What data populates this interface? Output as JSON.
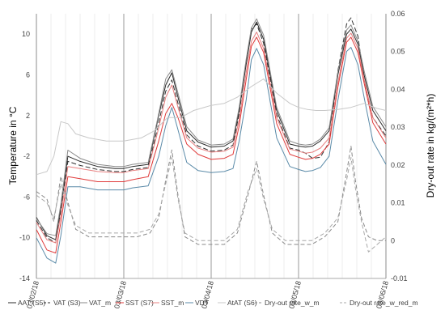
{
  "chart_data": {
    "type": "line",
    "ylabel": "Temperature in °C",
    "y2label": "Dry-out rate in kg/(m²*h)",
    "ylim": [
      -14,
      12
    ],
    "y2lim": [
      -0.01,
      0.06
    ],
    "yticks": [
      -14,
      -10,
      -6,
      -2,
      2,
      6,
      10
    ],
    "y2ticks": [
      -0.01,
      0,
      0.01,
      0.02,
      0.03,
      0.04,
      0.05,
      0.06
    ],
    "y2ticklabels": [
      "-0.01",
      "0",
      "0.01",
      "0.02",
      "0.03",
      "0.04",
      "0.05",
      "0.06"
    ],
    "xlim": [
      0,
      4
    ],
    "xticks": [
      0,
      1,
      2,
      3,
      4
    ],
    "xticklabels": [
      "03/02/18",
      "03/03/18",
      "03/04/18",
      "03/05/18",
      "03/06/18"
    ],
    "grid": "vertical",
    "legend_position": "bottom",
    "series": [
      {
        "name": "AAT (S5)",
        "axis": "left",
        "color": "#2a2a2a",
        "dash": "solid",
        "x": [
          0,
          0.12,
          0.22,
          0.28,
          0.36,
          0.5,
          0.7,
          0.9,
          1.0,
          1.1,
          1.28,
          1.4,
          1.48,
          1.55,
          1.62,
          1.72,
          1.85,
          2.0,
          2.15,
          2.25,
          2.32,
          2.4,
          2.46,
          2.52,
          2.6,
          2.75,
          2.9,
          3.0,
          3.08,
          3.16,
          3.25,
          3.35,
          3.45,
          3.55,
          3.6,
          3.68,
          3.75,
          3.85,
          4.0
        ],
        "y": [
          -8,
          -9.8,
          -10.2,
          -7,
          -2,
          -2.5,
          -3,
          -3.2,
          -3.2,
          -3,
          -2.8,
          2,
          5,
          6.2,
          3.8,
          0.5,
          -0.6,
          -1.1,
          -1.0,
          -0.5,
          2.5,
          7,
          10.2,
          11.2,
          9.5,
          2.5,
          -0.8,
          -1.0,
          -1.1,
          -1.0,
          -0.5,
          0.5,
          6,
          10,
          10.5,
          9,
          6,
          2.5,
          0.5
        ]
      },
      {
        "name": "VAT (S3)",
        "axis": "left",
        "color": "#303030",
        "dash": "6,3",
        "x": [
          0,
          0.12,
          0.22,
          0.28,
          0.36,
          0.5,
          0.7,
          0.9,
          1.0,
          1.1,
          1.28,
          1.4,
          1.48,
          1.55,
          1.62,
          1.72,
          1.85,
          2.0,
          2.15,
          2.25,
          2.32,
          2.4,
          2.46,
          2.52,
          2.6,
          2.75,
          2.9,
          3.0,
          3.08,
          3.16,
          3.25,
          3.35,
          3.45,
          3.55,
          3.6,
          3.68,
          3.75,
          3.85,
          4.0
        ],
        "y": [
          -8.3,
          -10.0,
          -10.5,
          -7.5,
          -2.5,
          -2.9,
          -3.3,
          -3.5,
          -3.5,
          -3.3,
          -3.1,
          1.3,
          4.4,
          5.5,
          3.2,
          0.1,
          -1.0,
          -1.5,
          -1.4,
          -0.9,
          2.2,
          7.2,
          10.5,
          11.0,
          9.1,
          2.1,
          -1.2,
          -1.4,
          -1.7,
          -2.2,
          -2.1,
          -0.6,
          6.4,
          11.0,
          11.6,
          9.8,
          5.5,
          1.8,
          0.0
        ]
      },
      {
        "name": "VAT_m",
        "axis": "left",
        "color": "#8a8a8a",
        "dash": "solid",
        "x": [
          0,
          0.12,
          0.22,
          0.28,
          0.36,
          0.5,
          0.7,
          0.9,
          1.0,
          1.1,
          1.28,
          1.4,
          1.48,
          1.55,
          1.62,
          1.72,
          1.85,
          2.0,
          2.15,
          2.25,
          2.32,
          2.4,
          2.46,
          2.52,
          2.6,
          2.75,
          2.9,
          3.0,
          3.08,
          3.16,
          3.25,
          3.35,
          3.45,
          3.55,
          3.6,
          3.68,
          3.75,
          3.85,
          4.0
        ],
        "y": [
          -8.1,
          -9.6,
          -9.8,
          -6.7,
          -1.4,
          -2.2,
          -2.8,
          -3.0,
          -3.0,
          -2.8,
          -2.6,
          2.2,
          5.6,
          6.5,
          4.2,
          0.9,
          -0.4,
          -0.9,
          -0.8,
          -0.3,
          2.8,
          7.5,
          10.6,
          11.5,
          9.9,
          2.8,
          -0.5,
          -0.8,
          -0.9,
          -0.8,
          -0.3,
          0.8,
          6.3,
          10.4,
          10.9,
          9.3,
          6.4,
          2.9,
          0.9
        ]
      },
      {
        "name": "SST (S7)",
        "axis": "left",
        "color": "#e03a3a",
        "dash": "solid",
        "x": [
          0,
          0.12,
          0.22,
          0.28,
          0.36,
          0.5,
          0.7,
          0.9,
          1.0,
          1.1,
          1.28,
          1.4,
          1.48,
          1.55,
          1.62,
          1.72,
          1.85,
          2.0,
          2.15,
          2.25,
          2.32,
          2.4,
          2.46,
          2.52,
          2.6,
          2.75,
          2.9,
          3.0,
          3.08,
          3.16,
          3.25,
          3.35,
          3.45,
          3.55,
          3.6,
          3.68,
          3.75,
          3.85,
          4.0
        ],
        "y": [
          -9.2,
          -11.2,
          -11.5,
          -8.5,
          -4.0,
          -4.2,
          -4.5,
          -4.5,
          -4.5,
          -4.3,
          -4.0,
          -0.5,
          2.2,
          3.2,
          1.8,
          -0.8,
          -1.8,
          -2.3,
          -2.2,
          -1.8,
          1.0,
          5.5,
          8.8,
          9.7,
          8.2,
          1.2,
          -1.8,
          -2.1,
          -2.3,
          -2.2,
          -1.8,
          -0.8,
          4.8,
          9.2,
          9.7,
          8.2,
          5.2,
          1.3,
          -0.8
        ]
      },
      {
        "name": "SST_m",
        "axis": "left",
        "color": "#e88080",
        "dash": "solid",
        "x": [
          0,
          0.12,
          0.22,
          0.28,
          0.36,
          0.5,
          0.7,
          0.9,
          1.0,
          1.1,
          1.28,
          1.4,
          1.48,
          1.55,
          1.62,
          1.72,
          1.85,
          2.0,
          2.15,
          2.25,
          2.32,
          2.4,
          2.46,
          2.52,
          2.6,
          2.75,
          2.9,
          3.0,
          3.08,
          3.16,
          3.25,
          3.35,
          3.45,
          3.55,
          3.6,
          3.68,
          3.75,
          3.85,
          4.0
        ],
        "y": [
          -8.5,
          -10.2,
          -10.5,
          -7.8,
          -3.0,
          -3.2,
          -3.5,
          -3.6,
          -3.6,
          -3.4,
          -3.2,
          0.8,
          3.8,
          5.0,
          2.8,
          -0.2,
          -1.2,
          -1.6,
          -1.5,
          -1.1,
          1.6,
          6.2,
          9.3,
          10.2,
          8.6,
          1.8,
          -1.3,
          -1.5,
          -1.7,
          -1.6,
          -1.2,
          -0.2,
          5.2,
          9.6,
          10.1,
          8.6,
          5.6,
          1.8,
          -0.2
        ]
      },
      {
        "name": "VDT",
        "axis": "left",
        "color": "#5a8aa8",
        "dash": "solid",
        "x": [
          0,
          0.12,
          0.22,
          0.28,
          0.36,
          0.5,
          0.7,
          0.9,
          1.0,
          1.1,
          1.28,
          1.4,
          1.48,
          1.55,
          1.62,
          1.72,
          1.85,
          2.0,
          2.15,
          2.25,
          2.32,
          2.4,
          2.46,
          2.52,
          2.6,
          2.75,
          2.9,
          3.0,
          3.08,
          3.16,
          3.25,
          3.35,
          3.45,
          3.55,
          3.6,
          3.68,
          3.75,
          3.85,
          4.0
        ],
        "y": [
          -10.0,
          -12.0,
          -12.5,
          -9.8,
          -5.0,
          -5.0,
          -5.3,
          -5.3,
          -5.3,
          -5.1,
          -4.9,
          -2.0,
          1.0,
          2.8,
          0.6,
          -2.6,
          -3.4,
          -3.6,
          -3.5,
          -3.2,
          -0.5,
          3.5,
          7.5,
          8.6,
          7.0,
          -0.2,
          -3.0,
          -3.3,
          -3.5,
          -3.4,
          -3.1,
          -2.0,
          3.5,
          8.3,
          8.7,
          7.0,
          3.8,
          -0.5,
          -2.8
        ]
      },
      {
        "name": "AtAT (S6)",
        "axis": "left",
        "color": "#c8c8c8",
        "dash": "solid",
        "x": [
          0,
          0.12,
          0.2,
          0.28,
          0.36,
          0.45,
          0.6,
          0.8,
          1.0,
          1.2,
          1.35,
          1.5,
          1.65,
          1.8,
          2.0,
          2.15,
          2.3,
          2.45,
          2.6,
          2.75,
          2.9,
          3.0,
          3.1,
          3.2,
          3.3,
          3.45,
          3.6,
          3.75,
          3.9,
          4.0
        ],
        "y": [
          -3.8,
          -3.5,
          -2.0,
          1.4,
          1.2,
          0.2,
          -0.2,
          -0.5,
          -0.5,
          -0.2,
          0.5,
          1.8,
          1.8,
          2.5,
          3.0,
          3.2,
          3.8,
          4.8,
          5.6,
          4.2,
          3.2,
          2.8,
          2.6,
          2.5,
          2.5,
          2.6,
          2.8,
          3.2,
          2.7,
          2.5
        ]
      },
      {
        "name": "Dry-out rate_w_m",
        "axis": "right",
        "color": "#8a8a8a",
        "dash": "5,3",
        "x": [
          0,
          0.12,
          0.2,
          0.28,
          0.35,
          0.45,
          0.6,
          0.8,
          1.0,
          1.15,
          1.3,
          1.4,
          1.48,
          1.55,
          1.62,
          1.7,
          1.85,
          2.0,
          2.15,
          2.3,
          2.42,
          2.52,
          2.6,
          2.7,
          2.85,
          3.0,
          3.15,
          3.3,
          3.45,
          3.55,
          3.6,
          3.65,
          3.72,
          3.8,
          3.9,
          4.0
        ],
        "y": [
          0.013,
          0.011,
          0.005,
          0.017,
          0.011,
          0.003,
          0.001,
          0.001,
          0.001,
          0.001,
          0.002,
          0.006,
          0.016,
          0.024,
          0.012,
          0.001,
          -0.001,
          -0.001,
          -0.001,
          0.002,
          0.012,
          0.021,
          0.012,
          0.002,
          -0.001,
          -0.001,
          -0.001,
          0.001,
          0.005,
          0.018,
          0.025,
          0.016,
          0.006,
          0.001,
          0.0,
          0.0
        ]
      },
      {
        "name": "Dry-out rate_w_red_m",
        "axis": "right",
        "color": "#a8a8a8",
        "dash": "5,3",
        "x": [
          0,
          0.12,
          0.2,
          0.28,
          0.35,
          0.45,
          0.6,
          0.8,
          1.0,
          1.15,
          1.3,
          1.4,
          1.48,
          1.55,
          1.62,
          1.7,
          1.85,
          2.0,
          2.15,
          2.3,
          2.42,
          2.52,
          2.6,
          2.7,
          2.85,
          3.0,
          3.15,
          3.3,
          3.45,
          3.55,
          3.6,
          3.65,
          3.72,
          3.8,
          3.9,
          4.0
        ],
        "y": [
          0.012,
          0.01,
          0.006,
          0.015,
          0.01,
          0.004,
          0.002,
          0.002,
          0.002,
          0.002,
          0.003,
          0.007,
          0.015,
          0.022,
          0.011,
          0.002,
          0.0,
          0.0,
          0.0,
          0.003,
          0.013,
          0.019,
          0.011,
          0.003,
          0.0,
          0.0,
          0.0,
          0.002,
          0.006,
          0.016,
          0.022,
          0.014,
          0.005,
          -0.003,
          -0.001,
          0.001
        ]
      }
    ]
  }
}
